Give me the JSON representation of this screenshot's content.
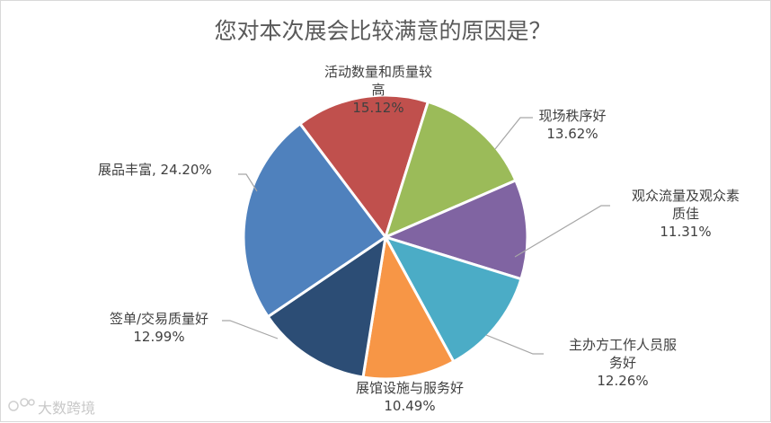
{
  "chart_data": {
    "type": "pie",
    "title": "您对本次展会比较满意的原因是？",
    "slices": [
      {
        "label_lines": [
          "活动数量和质量较",
          "高"
        ],
        "label": "活动数量和质量较高",
        "value": 15.12,
        "value_text": "15.12%",
        "color": "#c0504d"
      },
      {
        "label_lines": [
          "现场秩序好"
        ],
        "label": "现场秩序好",
        "value": 13.62,
        "value_text": "13.62%",
        "color": "#9bbb59"
      },
      {
        "label_lines": [
          "观众流量及观众素",
          "质佳"
        ],
        "label": "观众流量及观众素质佳",
        "value": 11.31,
        "value_text": "11.31%",
        "color": "#8064a2"
      },
      {
        "label_lines": [
          "主办方工作人员服",
          "务好"
        ],
        "label": "主办方工作人员服务好",
        "value": 12.26,
        "value_text": "12.26%",
        "color": "#4bacc6"
      },
      {
        "label_lines": [
          "展馆设施与服务好"
        ],
        "label": "展馆设施与服务好",
        "value": 10.49,
        "value_text": "10.49%",
        "color": "#f79646"
      },
      {
        "label_lines": [
          "签单/交易质量好"
        ],
        "label": "签单/交易质量好",
        "value": 12.99,
        "value_text": "12.99%",
        "color": "#2c4d75"
      },
      {
        "label_lines": [
          "展品丰富, 24.20%"
        ],
        "label": "展品丰富",
        "value": 24.2,
        "value_text": "",
        "color": "#4f81bd"
      }
    ]
  },
  "watermark": {
    "text": "大数跨境"
  }
}
